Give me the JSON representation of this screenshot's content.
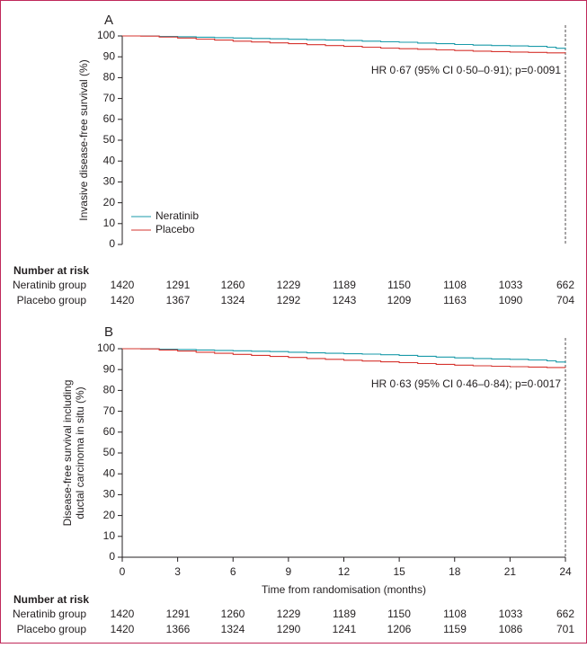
{
  "chart_data": [
    {
      "panel": "A",
      "type": "line",
      "title": "",
      "xlabel": "",
      "ylabel": "Invasive disease-free survival (%)",
      "xlim": [
        0,
        24
      ],
      "ylim": [
        0,
        100
      ],
      "yticks": [
        "0",
        "10",
        "20",
        "30",
        "40",
        "50",
        "60",
        "70",
        "80",
        "90",
        "100"
      ],
      "xticks": [],
      "annotation": "HR 0·67 (95% CI 0·50–0·91); p=0·0091",
      "legend": {
        "placement": "bottom-left"
      },
      "series": [
        {
          "name": "Neratinib",
          "color": "#1a9aa9",
          "x": [
            0,
            1.5,
            2,
            3,
            4,
            5,
            6,
            7,
            8,
            9,
            10,
            11,
            12,
            13,
            14,
            15,
            16,
            17,
            18,
            19,
            20,
            21,
            22,
            23,
            23.5,
            24
          ],
          "y": [
            100,
            100,
            99.8,
            99.6,
            99.4,
            99.2,
            99.0,
            98.8,
            98.6,
            98.4,
            98.2,
            98.0,
            97.8,
            97.5,
            97.2,
            97.0,
            96.6,
            96.3,
            95.9,
            95.6,
            95.4,
            95.2,
            95.0,
            94.6,
            94.1,
            93.8
          ]
        },
        {
          "name": "Placebo",
          "color": "#d6342f",
          "x": [
            0,
            1,
            2,
            3,
            4,
            5,
            6,
            7,
            8,
            9,
            10,
            11,
            12,
            13,
            14,
            15,
            16,
            17,
            18,
            19,
            20,
            21,
            22,
            23,
            24
          ],
          "y": [
            100,
            99.9,
            99.5,
            99.0,
            98.5,
            98.0,
            97.5,
            97.1,
            96.7,
            96.3,
            95.8,
            95.4,
            95.0,
            94.6,
            94.2,
            93.9,
            93.6,
            93.3,
            93.0,
            92.7,
            92.5,
            92.3,
            92.1,
            91.9,
            91.7
          ]
        }
      ]
    },
    {
      "panel": "B",
      "type": "line",
      "title": "",
      "xlabel": "Time from randomisation (months)",
      "ylabel": "Disease-free survival including ductal carcinoma in situ (%)",
      "ylabel_lines": [
        "Disease-free survival including",
        "ductal carcinoma in situ (%)"
      ],
      "xlim": [
        0,
        24
      ],
      "ylim": [
        0,
        100
      ],
      "yticks": [
        "0",
        "10",
        "20",
        "30",
        "40",
        "50",
        "60",
        "70",
        "80",
        "90",
        "100"
      ],
      "xticks": [
        "0",
        "3",
        "6",
        "9",
        "12",
        "15",
        "18",
        "21",
        "24"
      ],
      "annotation": "HR 0·63 (95% CI 0·46–0·84); p=0·0017",
      "series": [
        {
          "name": "Neratinib",
          "color": "#1a9aa9",
          "x": [
            0,
            1.5,
            2,
            3,
            4,
            5,
            6,
            7,
            8,
            9,
            10,
            11,
            12,
            13,
            14,
            15,
            16,
            17,
            18,
            19,
            20,
            21,
            22,
            23,
            23.5,
            24
          ],
          "y": [
            100,
            100,
            99.8,
            99.6,
            99.4,
            99.2,
            99.0,
            98.8,
            98.6,
            98.3,
            98.0,
            97.8,
            97.6,
            97.4,
            97.1,
            96.8,
            96.4,
            96.0,
            95.6,
            95.3,
            95.1,
            94.9,
            94.6,
            94.2,
            93.6,
            93.2
          ]
        },
        {
          "name": "Placebo",
          "color": "#d6342f",
          "x": [
            0,
            1,
            2,
            3,
            4,
            5,
            6,
            7,
            8,
            9,
            10,
            11,
            12,
            13,
            14,
            15,
            16,
            17,
            18,
            19,
            20,
            21,
            22,
            23,
            24
          ],
          "y": [
            100,
            99.9,
            99.4,
            98.9,
            98.3,
            97.8,
            97.3,
            96.8,
            96.3,
            95.8,
            95.3,
            94.9,
            94.5,
            94.1,
            93.7,
            93.3,
            92.9,
            92.5,
            92.1,
            91.8,
            91.6,
            91.4,
            91.2,
            91.0,
            90.8
          ]
        }
      ]
    }
  ],
  "risk_tables": [
    {
      "header": "Number at risk",
      "rows": [
        {
          "group": "Neratinib group",
          "values": [
            "1420",
            "1291",
            "1260",
            "1229",
            "1189",
            "1150",
            "1108",
            "1033",
            "662"
          ]
        },
        {
          "group": "Placebo group",
          "values": [
            "1420",
            "1367",
            "1324",
            "1292",
            "1243",
            "1209",
            "1163",
            "1090",
            "704"
          ]
        }
      ]
    },
    {
      "header": "Number at risk",
      "rows": [
        {
          "group": "Neratinib group",
          "values": [
            "1420",
            "1291",
            "1260",
            "1229",
            "1189",
            "1150",
            "1108",
            "1033",
            "662"
          ]
        },
        {
          "group": "Placebo group",
          "values": [
            "1420",
            "1366",
            "1324",
            "1290",
            "1241",
            "1206",
            "1159",
            "1086",
            "701"
          ]
        }
      ]
    }
  ]
}
